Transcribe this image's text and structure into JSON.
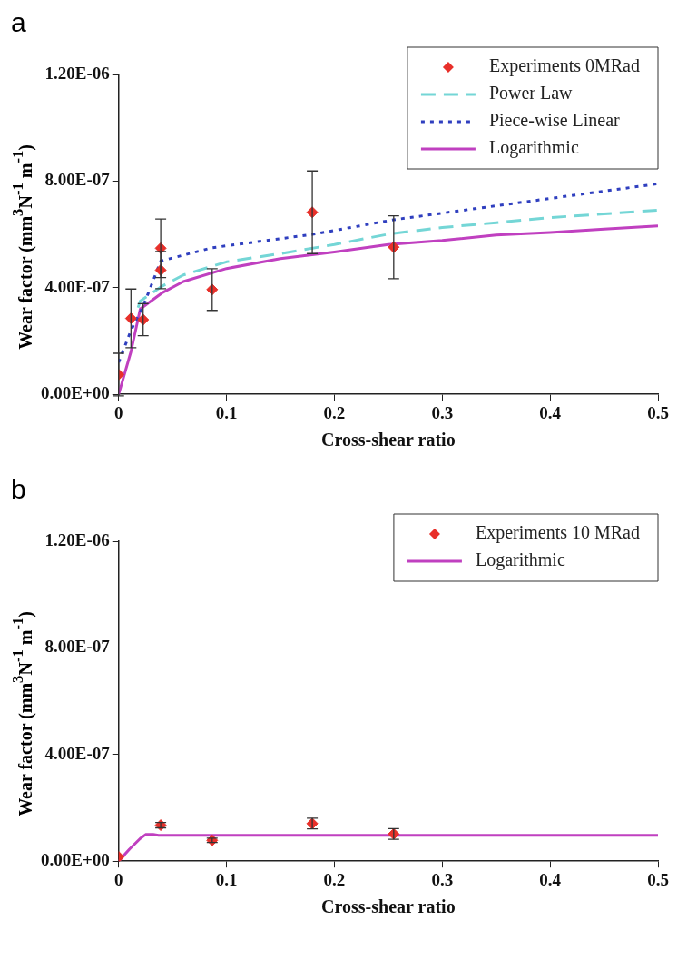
{
  "chart_data": [
    {
      "type": "line",
      "title": "a",
      "xlabel": "Cross-shear ratio",
      "ylabel": "Wear factor (mm$^{3}$N$^{-1}$ m$^{-1}$)",
      "xlim": [
        0,
        0.5
      ],
      "ylim": [
        0,
        1.2e-06
      ],
      "xticks": [
        0,
        0.1,
        0.2,
        0.3,
        0.4,
        0.5
      ],
      "yticks": [
        {
          "value": 0,
          "label": "0.00E+00"
        },
        {
          "value": 4e-07,
          "label": "4.00E-07"
        },
        {
          "value": 8e-07,
          "label": "8.00E-07"
        },
        {
          "value": 1.2e-06,
          "label": "1.20E-06"
        }
      ],
      "legend": "top right",
      "series": [
        {
          "name": "Experiments 0MRad",
          "type": "scatter",
          "marker": "diamond",
          "color": "#e8302a",
          "x": [
            0,
            0.0114,
            0.0227,
            0.039,
            0.039,
            0.0867,
            0.1795,
            0.255
          ],
          "values": [
            7.4e-08,
            2.85e-07,
            2.8e-07,
            5.48e-07,
            4.66e-07,
            3.93e-07,
            6.83e-07,
            5.52e-07
          ],
          "errors": [
            8e-08,
            1.1e-07,
            6e-08,
            1.1e-07,
            7e-08,
            7.8e-08,
            1.55e-07,
            1.18e-07
          ]
        },
        {
          "name": "Power Law",
          "type": "line",
          "line_style": "dashed",
          "color": "#74d6d6",
          "x": [
            0.018,
            0.02,
            0.04,
            0.06,
            0.1,
            0.15,
            0.2,
            0.25,
            0.3,
            0.35,
            0.4,
            0.45,
            0.5
          ],
          "values": [
            3.25e-07,
            3.5e-07,
            4.05e-07,
            4.48e-07,
            4.97e-07,
            5.28e-07,
            5.62e-07,
            6.01e-07,
            6.26e-07,
            6.44e-07,
            6.63e-07,
            6.77e-07,
            6.91e-07
          ]
        },
        {
          "name": "Piece-wise Linear",
          "type": "line",
          "line_style": "dotted",
          "color": "#2f3fbf",
          "x": [
            0,
            0.0114,
            0.0227,
            0.039,
            0.0867,
            0.1795,
            0.255,
            0.5
          ],
          "values": [
            1.2e-07,
            2.4e-07,
            3.3e-07,
            5e-07,
            5.5e-07,
            6e-07,
            6.55e-07,
            7.9e-07
          ]
        },
        {
          "name": "Logarithmic",
          "type": "line",
          "line_style": "solid",
          "color": "#c040c0",
          "x": [
            0,
            0.0114,
            0.02,
            0.04,
            0.06,
            0.1,
            0.15,
            0.2,
            0.25,
            0.3,
            0.35,
            0.4,
            0.45,
            0.5
          ],
          "values": [
            0,
            1.6e-07,
            3.2e-07,
            3.8e-07,
            4.23e-07,
            4.72e-07,
            5.09e-07,
            5.34e-07,
            5.62e-07,
            5.77e-07,
            5.98e-07,
            6.07e-07,
            6.2e-07,
            6.32e-07
          ]
        }
      ]
    },
    {
      "type": "line",
      "title": "b",
      "xlabel": "Cross-shear ratio",
      "ylabel": "Wear factor (mm$^{3}$N$^{-1}$ m$^{-1}$)",
      "xlim": [
        0,
        0.5
      ],
      "ylim": [
        0,
        1.2e-06
      ],
      "xticks": [
        0,
        0.1,
        0.2,
        0.3,
        0.4,
        0.5
      ],
      "yticks": [
        {
          "value": 0,
          "label": "0.00E+00"
        },
        {
          "value": 4e-07,
          "label": "4.00E-07"
        },
        {
          "value": 8e-07,
          "label": "8.00E-07"
        },
        {
          "value": 1.2e-06,
          "label": "1.20E-06"
        }
      ],
      "legend": "top right",
      "series": [
        {
          "name": "Experiments 10 MRad",
          "type": "scatter",
          "marker": "diamond",
          "color": "#e8302a",
          "x": [
            0,
            0.039,
            0.0867,
            0.1795,
            0.255
          ],
          "values": [
            1.6e-08,
            1.35e-07,
            7.8e-08,
            1.41e-07,
            1.02e-07
          ],
          "errors": [
            null,
            1e-08,
            8e-09,
            2e-08,
            2e-08
          ]
        },
        {
          "name": "Logarithmic",
          "type": "line",
          "line_style": "solid",
          "color": "#c040c0",
          "x": [
            0,
            0.01,
            0.02,
            0.025,
            0.032,
            0.037,
            0.1,
            0.2,
            0.3,
            0.4,
            0.5
          ],
          "values": [
            0,
            4.5e-08,
            8.5e-08,
            1e-07,
            1e-07,
            9.7e-08,
            9.7e-08,
            9.7e-08,
            9.7e-08,
            9.7e-08,
            9.7e-08
          ]
        }
      ]
    }
  ]
}
